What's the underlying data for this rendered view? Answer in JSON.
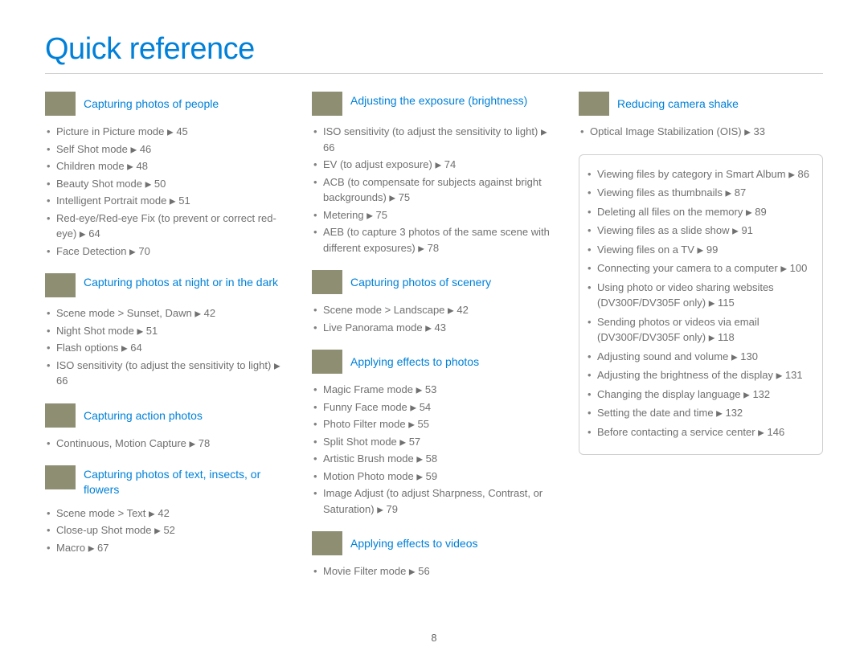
{
  "page": {
    "title": "Quick reference",
    "number": "8",
    "colors": {
      "accent": "#0080d8",
      "text": "#707070",
      "rule": "#d0d0d0",
      "bg": "#ffffff"
    }
  },
  "arrow": "▶",
  "col1": [
    {
      "key": "people",
      "title": "Capturing photos of people",
      "thumb_class": "th-face",
      "items": [
        "Picture in Picture mode ▶ 45",
        "Self Shot mode ▶ 46",
        "Children mode ▶ 48",
        "Beauty Shot mode ▶ 50",
        "Intelligent Portrait mode ▶ 51",
        "Red-eye/Red-eye Fix (to prevent or correct red-eye) ▶ 64",
        "Face Detection ▶ 70"
      ]
    },
    {
      "key": "night",
      "title": "Capturing photos at night or in the dark",
      "thumb_class": "th-night",
      "items": [
        "Scene mode > Sunset, Dawn ▶ 42",
        "Night Shot mode ▶ 51",
        "Flash options ▶ 64",
        "ISO sensitivity (to adjust the sensitivity to light) ▶ 66"
      ]
    },
    {
      "key": "action",
      "title": "Capturing action photos",
      "thumb_class": "th-action",
      "items": [
        "Continuous, Motion Capture ▶ 78"
      ]
    },
    {
      "key": "text",
      "title": "Capturing photos of text, insects, or flowers",
      "thumb_class": "th-flower",
      "items": [
        "Scene mode > Text ▶ 42",
        "Close-up Shot mode ▶ 52",
        "Macro ▶ 67"
      ]
    }
  ],
  "col2": [
    {
      "key": "exposure",
      "title": "Adjusting the exposure (brightness)",
      "thumb_class": "th-exposure",
      "items": [
        "ISO sensitivity (to adjust the sensitivity to light) ▶ 66",
        "EV (to adjust exposure) ▶ 74",
        "ACB (to compensate for subjects against bright backgrounds) ▶ 75",
        "Metering ▶ 75",
        "AEB (to capture 3 photos of the same scene with different exposures) ▶ 78"
      ]
    },
    {
      "key": "scenery",
      "title": "Capturing photos of scenery",
      "thumb_class": "th-scenery",
      "items": [
        "Scene mode > Landscape ▶ 42",
        "Live Panorama mode ▶ 43"
      ]
    },
    {
      "key": "effects-photos",
      "title": "Applying effects to photos",
      "thumb_class": "th-effects",
      "items": [
        "Magic Frame mode ▶ 53",
        "Funny Face mode ▶ 54",
        "Photo Filter mode ▶ 55",
        "Split Shot mode ▶ 57",
        "Artistic Brush mode ▶ 58",
        "Motion Photo mode ▶ 59",
        "Image Adjust (to adjust Sharpness, Contrast, or Saturation) ▶ 79"
      ]
    },
    {
      "key": "effects-videos",
      "title": "Applying effects to videos",
      "thumb_class": "th-video",
      "items": [
        "Movie Filter mode ▶ 56"
      ]
    }
  ],
  "col3": [
    {
      "key": "shake",
      "title": "Reducing camera shake",
      "thumb_class": "th-shake",
      "items": [
        "Optical Image Stabilization (OIS) ▶ 33"
      ]
    }
  ],
  "box_items": [
    "Viewing files by category in Smart Album ▶ 86",
    "Viewing files as thumbnails ▶ 87",
    "Deleting all files on the memory ▶ 89",
    "Viewing files as a slide show ▶ 91",
    "Viewing files on a TV ▶ 99",
    "Connecting your camera to a computer ▶ 100",
    "Using photo or video sharing websites (DV300F/DV305F only) ▶ 115",
    "Sending photos or videos via email (DV300F/DV305F only) ▶ 118",
    "Adjusting sound and volume ▶ 130",
    "Adjusting the brightness of the display ▶ 131",
    "Changing the display language ▶ 132",
    "Setting the date and time ▶ 132",
    "Before contacting a service center ▶ 146"
  ]
}
